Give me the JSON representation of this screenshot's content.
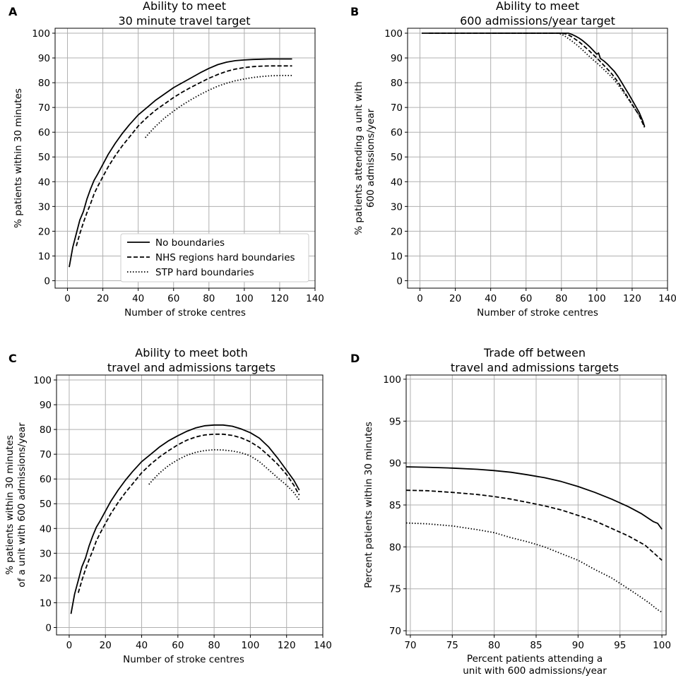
{
  "figure": {
    "panel_letters": [
      "A",
      "B",
      "C",
      "D"
    ]
  },
  "chart_data": [
    {
      "id": "A",
      "type": "line",
      "title": [
        "Ability to meet",
        "30 minute travel target"
      ],
      "xlabel": "Number of stroke centres",
      "ylabel": [
        "% patients within 30 minutes"
      ],
      "xlim": [
        -7,
        140
      ],
      "ylim": [
        -3,
        102
      ],
      "xticks": [
        0,
        20,
        40,
        60,
        80,
        100,
        120,
        140
      ],
      "yticks": [
        0,
        10,
        20,
        30,
        40,
        50,
        60,
        70,
        80,
        90,
        100
      ],
      "legend": {
        "position": "bottom-center",
        "entries": [
          "No boundaries",
          "NHS regions hard boundaries",
          "STP hard boundaries"
        ]
      },
      "series": [
        {
          "name": "No boundaries",
          "style": "solid",
          "x": [
            1,
            3,
            5,
            7,
            9,
            11,
            13,
            15,
            17,
            20,
            23,
            27,
            31,
            35,
            40,
            45,
            50,
            55,
            60,
            65,
            70,
            75,
            80,
            85,
            90,
            95,
            100,
            105,
            110,
            115,
            120,
            127
          ],
          "y": [
            5.5,
            13.5,
            19,
            24.5,
            28,
            33,
            37,
            40.5,
            43,
            47,
            51,
            55.5,
            59.5,
            63,
            67,
            70,
            73,
            75.5,
            78,
            80,
            82,
            84,
            85.8,
            87.3,
            88.3,
            88.9,
            89.2,
            89.4,
            89.5,
            89.6,
            89.6,
            89.6
          ]
        },
        {
          "name": "NHS regions hard boundaries",
          "style": "dashed",
          "x": [
            5,
            7,
            9,
            11,
            13,
            15,
            17,
            20,
            23,
            27,
            31,
            35,
            40,
            45,
            50,
            55,
            60,
            65,
            70,
            75,
            80,
            85,
            90,
            95,
            100,
            105,
            110,
            115,
            120,
            127
          ],
          "y": [
            14,
            19,
            23.5,
            27.5,
            31,
            35,
            38,
            42,
            46,
            50.5,
            54.5,
            58,
            62.5,
            66,
            69,
            71.5,
            74,
            76.2,
            78.2,
            80,
            81.8,
            83.3,
            84.6,
            85.5,
            86.1,
            86.5,
            86.7,
            86.8,
            86.8,
            86.8
          ]
        },
        {
          "name": "STP hard boundaries",
          "style": "dotted",
          "x": [
            44,
            46,
            50,
            55,
            60,
            65,
            70,
            75,
            80,
            85,
            90,
            95,
            100,
            105,
            110,
            115,
            120,
            127
          ],
          "y": [
            57.8,
            59.5,
            62.5,
            65.8,
            68.5,
            71,
            73.2,
            75.2,
            77,
            78.6,
            79.8,
            80.8,
            81.5,
            82.1,
            82.5,
            82.8,
            82.9,
            82.9
          ]
        }
      ]
    },
    {
      "id": "B",
      "type": "line",
      "title": [
        "Ability to meet",
        "600 admissions/year target"
      ],
      "xlabel": "Number of stroke centres",
      "ylabel": [
        "% patients attending a unit with",
        "600 admissions/year"
      ],
      "xlim": [
        -7,
        140
      ],
      "ylim": [
        -3,
        102
      ],
      "xticks": [
        0,
        20,
        40,
        60,
        80,
        100,
        120,
        140
      ],
      "yticks": [
        0,
        10,
        20,
        30,
        40,
        50,
        60,
        70,
        80,
        90,
        100
      ],
      "series": [
        {
          "name": "No boundaries",
          "style": "solid",
          "x": [
            1,
            80,
            84,
            86,
            88,
            90,
            92,
            94,
            96,
            98,
            100,
            101,
            102,
            104,
            106,
            108,
            110,
            112,
            114,
            116,
            118,
            120,
            122,
            124,
            126,
            127
          ],
          "y": [
            100,
            100,
            100,
            99.5,
            98.8,
            98,
            97,
            95.8,
            94.5,
            93,
            91.5,
            92,
            89.8,
            88.8,
            87.5,
            86,
            84.5,
            82.5,
            80.2,
            77.8,
            75.5,
            73,
            70.5,
            68,
            64.5,
            62.3
          ]
        },
        {
          "name": "NHS regions hard boundaries",
          "style": "dashed",
          "x": [
            5,
            80,
            82,
            84,
            86,
            88,
            90,
            92,
            94,
            96,
            98,
            100,
            102,
            104,
            106,
            108,
            110,
            112,
            114,
            116,
            118,
            120,
            122,
            124,
            126,
            127
          ],
          "y": [
            100,
            100,
            99.8,
            99.3,
            98.5,
            97.5,
            96.5,
            95.3,
            94,
            92.7,
            91.3,
            90,
            88.5,
            87,
            85.5,
            84,
            82.2,
            80.2,
            78,
            75.8,
            73.5,
            71.2,
            69,
            66.8,
            63.5,
            62
          ]
        },
        {
          "name": "STP hard boundaries",
          "style": "dotted",
          "x": [
            44,
            78,
            80,
            82,
            84,
            86,
            88,
            90,
            92,
            94,
            96,
            98,
            100,
            102,
            104,
            106,
            108,
            110,
            112,
            114,
            116,
            118,
            120,
            122,
            124,
            126,
            127
          ],
          "y": [
            100,
            100,
            99.6,
            98.8,
            97.8,
            96.8,
            95.7,
            94.5,
            93.2,
            91.8,
            90.5,
            89.2,
            88,
            86.7,
            85.3,
            84,
            82.6,
            81,
            79.2,
            77.3,
            75.2,
            73.2,
            71,
            69,
            66.8,
            64,
            61.8
          ]
        }
      ]
    },
    {
      "id": "C",
      "type": "line",
      "title": [
        "Ability to meet both",
        "travel and admissions targets"
      ],
      "xlabel": "Number of stroke centres",
      "ylabel": [
        "% patients within 30 minutes",
        "of a unit with 600 admissions/year"
      ],
      "xlim": [
        -7,
        140
      ],
      "ylim": [
        -3,
        102
      ],
      "xticks": [
        0,
        20,
        40,
        60,
        80,
        100,
        120,
        140
      ],
      "yticks": [
        0,
        10,
        20,
        30,
        40,
        50,
        60,
        70,
        80,
        90,
        100
      ],
      "series": [
        {
          "name": "No boundaries",
          "style": "solid",
          "x": [
            1,
            3,
            5,
            7,
            9,
            11,
            13,
            15,
            17,
            20,
            23,
            27,
            31,
            35,
            40,
            45,
            50,
            55,
            60,
            65,
            70,
            75,
            80,
            85,
            90,
            95,
            100,
            105,
            110,
            115,
            120,
            124,
            127
          ],
          "y": [
            5.5,
            13.5,
            19,
            24.5,
            28,
            33,
            37,
            40.5,
            43,
            47,
            51,
            55.5,
            59.5,
            63,
            67,
            70,
            73,
            75.5,
            77.5,
            79.3,
            80.7,
            81.5,
            81.8,
            81.8,
            81.3,
            80.2,
            78.7,
            76.5,
            73,
            68.5,
            63.5,
            59.5,
            55.5
          ]
        },
        {
          "name": "NHS regions hard boundaries",
          "style": "dashed",
          "x": [
            5,
            7,
            9,
            11,
            13,
            15,
            17,
            20,
            23,
            27,
            31,
            35,
            40,
            45,
            50,
            55,
            60,
            65,
            70,
            75,
            80,
            85,
            90,
            95,
            100,
            105,
            110,
            115,
            120,
            124,
            127
          ],
          "y": [
            14,
            19,
            23.5,
            27.5,
            31,
            35,
            38,
            42,
            46,
            50.5,
            54.5,
            58,
            62.5,
            66,
            69,
            71.5,
            73.8,
            75.7,
            77,
            77.8,
            78.1,
            78.1,
            77.6,
            76.6,
            75,
            72.7,
            69.5,
            66,
            61.8,
            57.5,
            53.5
          ]
        },
        {
          "name": "STP hard boundaries",
          "style": "dotted",
          "x": [
            44,
            46,
            50,
            55,
            60,
            65,
            70,
            75,
            80,
            85,
            90,
            95,
            100,
            105,
            110,
            115,
            120,
            124,
            127
          ],
          "y": [
            57.8,
            59.5,
            62.5,
            65.5,
            67.8,
            69.6,
            70.8,
            71.5,
            71.8,
            71.7,
            71.3,
            70.6,
            69.3,
            67,
            63.8,
            60.5,
            57.5,
            54.5,
            51.5
          ]
        }
      ]
    },
    {
      "id": "D",
      "type": "line",
      "title": [
        "Trade off between",
        "travel and admissions targets"
      ],
      "xlabel": [
        "Percent patients attending a",
        "unit with 600 admissions/year"
      ],
      "ylabel": [
        "Percent patients within 30 minutes"
      ],
      "xlim": [
        69.5,
        100.5
      ],
      "ylim": [
        69.5,
        100.5
      ],
      "xticks": [
        70,
        75,
        80,
        85,
        90,
        95,
        100
      ],
      "yticks": [
        70,
        75,
        80,
        85,
        90,
        95,
        100
      ],
      "series": [
        {
          "name": "No boundaries",
          "style": "solid",
          "x": [
            69.5,
            72,
            75,
            78,
            80,
            82,
            84,
            86,
            88,
            90,
            92,
            94,
            96,
            97.5,
            99,
            99.5,
            100
          ],
          "y": [
            89.55,
            89.5,
            89.4,
            89.25,
            89.1,
            88.9,
            88.6,
            88.25,
            87.8,
            87.2,
            86.5,
            85.7,
            84.8,
            84,
            83,
            82.8,
            82.1
          ]
        },
        {
          "name": "NHS regions hard boundaries",
          "style": "dashed",
          "x": [
            69.5,
            72,
            75,
            78,
            80,
            82,
            84,
            86,
            88,
            90,
            92,
            94,
            96,
            98,
            99,
            100
          ],
          "y": [
            86.75,
            86.7,
            86.5,
            86.25,
            86,
            85.7,
            85.3,
            84.9,
            84.4,
            83.75,
            83.1,
            82.2,
            81.3,
            80.2,
            79.3,
            78.4
          ]
        },
        {
          "name": "STP hard boundaries",
          "style": "dotted",
          "x": [
            69.5,
            72,
            75,
            78,
            80,
            82,
            84,
            86,
            88,
            90,
            92,
            94,
            96,
            97.5,
            98.5,
            99.5,
            100
          ],
          "y": [
            82.85,
            82.75,
            82.5,
            82.05,
            81.7,
            81.1,
            80.6,
            80,
            79.2,
            78.4,
            77.3,
            76.3,
            75,
            74,
            73.3,
            72.5,
            72.2
          ]
        }
      ]
    }
  ]
}
